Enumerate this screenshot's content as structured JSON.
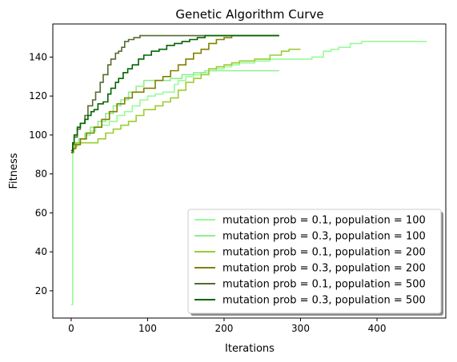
{
  "chart_data": {
    "type": "line",
    "title": "Genetic Algorithm Curve",
    "xlabel": "Iterations",
    "ylabel": "Fitness",
    "xlim": [
      -24,
      490
    ],
    "ylim": [
      6,
      157
    ],
    "xticks": [
      0,
      100,
      200,
      300,
      400
    ],
    "yticks": [
      20,
      40,
      60,
      80,
      100,
      120,
      140
    ],
    "grid": false,
    "legend_position": "lower-right",
    "series": [
      {
        "name": "mutation prob = 0.1, population = 100",
        "color": "#98fb98",
        "points": [
          [
            0,
            13
          ],
          [
            1,
            13
          ],
          [
            2,
            92
          ],
          [
            3,
            93
          ],
          [
            5,
            94
          ],
          [
            8,
            96
          ],
          [
            12,
            98
          ],
          [
            18,
            100
          ],
          [
            25,
            102
          ],
          [
            32,
            104
          ],
          [
            40,
            105
          ],
          [
            50,
            107
          ],
          [
            60,
            110
          ],
          [
            70,
            112
          ],
          [
            80,
            115
          ],
          [
            90,
            118
          ],
          [
            100,
            120
          ],
          [
            110,
            121
          ],
          [
            120,
            122
          ],
          [
            130,
            122
          ],
          [
            135,
            126
          ],
          [
            140,
            128
          ],
          [
            150,
            130
          ],
          [
            160,
            131
          ],
          [
            170,
            132
          ],
          [
            180,
            133
          ],
          [
            190,
            134
          ],
          [
            200,
            135
          ],
          [
            210,
            136
          ],
          [
            220,
            137
          ],
          [
            230,
            137
          ],
          [
            240,
            138
          ],
          [
            250,
            138
          ],
          [
            260,
            139
          ],
          [
            270,
            139
          ],
          [
            280,
            139
          ],
          [
            290,
            139
          ],
          [
            300,
            139
          ],
          [
            315,
            140
          ],
          [
            325,
            140
          ],
          [
            330,
            143
          ],
          [
            340,
            144
          ],
          [
            350,
            145
          ],
          [
            360,
            145
          ],
          [
            365,
            147
          ],
          [
            380,
            148
          ],
          [
            400,
            148
          ],
          [
            420,
            148
          ],
          [
            440,
            148
          ],
          [
            460,
            148
          ],
          [
            465,
            148
          ]
        ]
      },
      {
        "name": "mutation prob = 0.3, population = 100",
        "color": "#90ee90",
        "points": [
          [
            0,
            91
          ],
          [
            2,
            93
          ],
          [
            5,
            95
          ],
          [
            10,
            98
          ],
          [
            18,
            101
          ],
          [
            25,
            104
          ],
          [
            35,
            107
          ],
          [
            45,
            111
          ],
          [
            55,
            115
          ],
          [
            65,
            118
          ],
          [
            75,
            122
          ],
          [
            85,
            125
          ],
          [
            95,
            128
          ],
          [
            120,
            128
          ],
          [
            130,
            129
          ],
          [
            145,
            131
          ],
          [
            160,
            132
          ],
          [
            175,
            133
          ],
          [
            200,
            133
          ],
          [
            220,
            133
          ],
          [
            240,
            133
          ],
          [
            255,
            133
          ],
          [
            262,
            133
          ],
          [
            272,
            133
          ]
        ]
      },
      {
        "name": "mutation prob = 0.1, population = 200",
        "color": "#9acd32",
        "points": [
          [
            0,
            92
          ],
          [
            3,
            94
          ],
          [
            6,
            96
          ],
          [
            20,
            96
          ],
          [
            30,
            96
          ],
          [
            35,
            98
          ],
          [
            45,
            101
          ],
          [
            55,
            103
          ],
          [
            65,
            105
          ],
          [
            75,
            107
          ],
          [
            85,
            110
          ],
          [
            95,
            113
          ],
          [
            110,
            115
          ],
          [
            120,
            117
          ],
          [
            130,
            119
          ],
          [
            140,
            123
          ],
          [
            150,
            127
          ],
          [
            160,
            129
          ],
          [
            170,
            131
          ],
          [
            180,
            134
          ],
          [
            190,
            135
          ],
          [
            200,
            136
          ],
          [
            210,
            137
          ],
          [
            220,
            138
          ],
          [
            230,
            138
          ],
          [
            240,
            139
          ],
          [
            260,
            141
          ],
          [
            275,
            143
          ],
          [
            285,
            144
          ],
          [
            295,
            144
          ],
          [
            300,
            144
          ]
        ]
      },
      {
        "name": "mutation prob = 0.3, population = 200",
        "color": "#808000",
        "points": [
          [
            0,
            91
          ],
          [
            3,
            93
          ],
          [
            6,
            95
          ],
          [
            12,
            98
          ],
          [
            20,
            101
          ],
          [
            30,
            104
          ],
          [
            40,
            108
          ],
          [
            50,
            112
          ],
          [
            60,
            116
          ],
          [
            70,
            119
          ],
          [
            80,
            122
          ],
          [
            95,
            124
          ],
          [
            110,
            128
          ],
          [
            120,
            130
          ],
          [
            130,
            133
          ],
          [
            140,
            136
          ],
          [
            150,
            139
          ],
          [
            160,
            142
          ],
          [
            170,
            144
          ],
          [
            180,
            147
          ],
          [
            190,
            149
          ],
          [
            200,
            150
          ],
          [
            210,
            151
          ],
          [
            225,
            151
          ],
          [
            240,
            151
          ],
          [
            255,
            151
          ],
          [
            272,
            151
          ]
        ]
      },
      {
        "name": "mutation prob = 0.1, population = 500",
        "color": "#556b2f",
        "points": [
          [
            0,
            91
          ],
          [
            2,
            95
          ],
          [
            4,
            99
          ],
          [
            8,
            103
          ],
          [
            12,
            106
          ],
          [
            18,
            110
          ],
          [
            22,
            115
          ],
          [
            28,
            118
          ],
          [
            32,
            122
          ],
          [
            38,
            127
          ],
          [
            42,
            131
          ],
          [
            48,
            136
          ],
          [
            52,
            139
          ],
          [
            58,
            142
          ],
          [
            62,
            143
          ],
          [
            66,
            145
          ],
          [
            70,
            148
          ],
          [
            75,
            149
          ],
          [
            82,
            150
          ],
          [
            90,
            151
          ],
          [
            100,
            151
          ],
          [
            120,
            151
          ],
          [
            140,
            151
          ],
          [
            160,
            151
          ],
          [
            180,
            151
          ],
          [
            200,
            151
          ],
          [
            220,
            151
          ],
          [
            240,
            151
          ],
          [
            260,
            151
          ],
          [
            272,
            151
          ]
        ]
      },
      {
        "name": "mutation prob = 0.3, population = 500",
        "color": "#006400",
        "points": [
          [
            0,
            92
          ],
          [
            2,
            96
          ],
          [
            4,
            100
          ],
          [
            8,
            104
          ],
          [
            12,
            106
          ],
          [
            18,
            108
          ],
          [
            22,
            110
          ],
          [
            26,
            112
          ],
          [
            30,
            113
          ],
          [
            35,
            116
          ],
          [
            42,
            117
          ],
          [
            48,
            121
          ],
          [
            52,
            124
          ],
          [
            58,
            127
          ],
          [
            62,
            129
          ],
          [
            68,
            132
          ],
          [
            74,
            134
          ],
          [
            80,
            136
          ],
          [
            88,
            139
          ],
          [
            95,
            141
          ],
          [
            105,
            143
          ],
          [
            115,
            144
          ],
          [
            125,
            146
          ],
          [
            135,
            147
          ],
          [
            145,
            148
          ],
          [
            155,
            149
          ],
          [
            165,
            150
          ],
          [
            175,
            151
          ],
          [
            190,
            151
          ],
          [
            210,
            151
          ],
          [
            230,
            151
          ],
          [
            250,
            151
          ],
          [
            272,
            151
          ]
        ]
      }
    ]
  }
}
